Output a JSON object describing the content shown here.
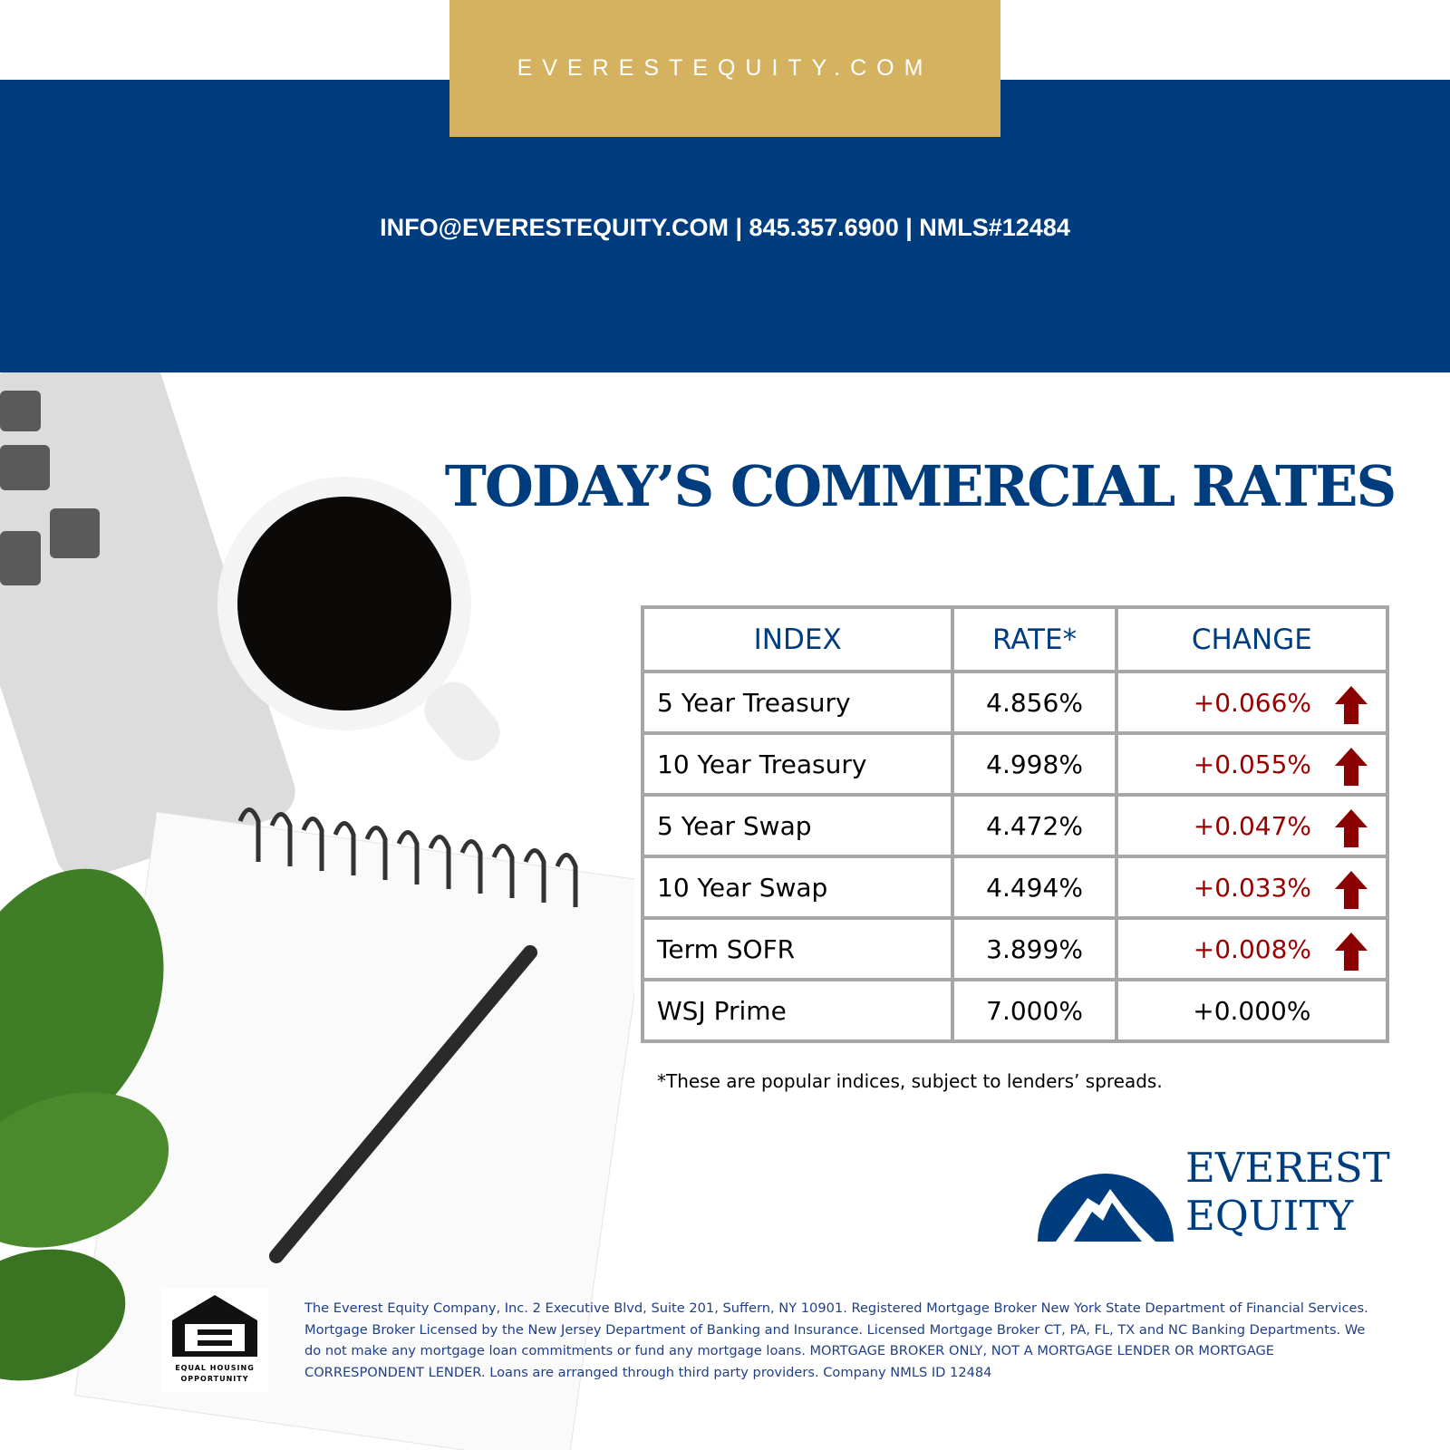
{
  "header": {
    "site": "EVERESTEQUITY.COM",
    "contact": "INFO@EVERESTEQUITY.COM |  845.357.6900 | NMLS#12484"
  },
  "title": "TODAY’S COMMERCIAL RATES",
  "table": {
    "columns": [
      "INDEX",
      "RATE*",
      "CHANGE"
    ],
    "rows": [
      [
        "5 Year Treasury",
        "4.856%",
        "+0.066%"
      ],
      [
        "10 Year Treasury",
        "4.998%",
        "+0.055%"
      ],
      [
        "5 Year Swap",
        "4.472%",
        "+0.047%"
      ],
      [
        "10 Year Swap",
        "4.494%",
        "+0.033%"
      ],
      [
        "Term SOFR",
        "3.899%",
        "+0.008%"
      ],
      [
        "WSJ Prime",
        "7.000%",
        "+0.000%"
      ]
    ]
  },
  "footnote": "*These are popular indices, subject to lenders’ spreads.",
  "logo": {
    "line1": "EVEREST",
    "line2": "EQUITY"
  },
  "equal_housing": {
    "line1": "EQUAL HOUSING",
    "line2": "OPPORTUNITY"
  },
  "disclaimer": "The Everest Equity Company, Inc. 2 Executive Blvd, Suite 201, Suffern, NY 10901. Registered Mortgage Broker New York State Department of Financial Services. Mortgage Broker Licensed by the New Jersey Department of Banking and Insurance. Licensed Mortgage Broker CT, PA, FL, TX and NC Banking Departments. We do not make any mortgage loan commitments or fund any mortgage loans. MORTGAGE BROKER ONLY, NOT A MORTGAGE LENDER OR MORTGAGE CORRESPONDENT LENDER. Loans are arranged through third party providers. Company NMLS ID 12484"
}
